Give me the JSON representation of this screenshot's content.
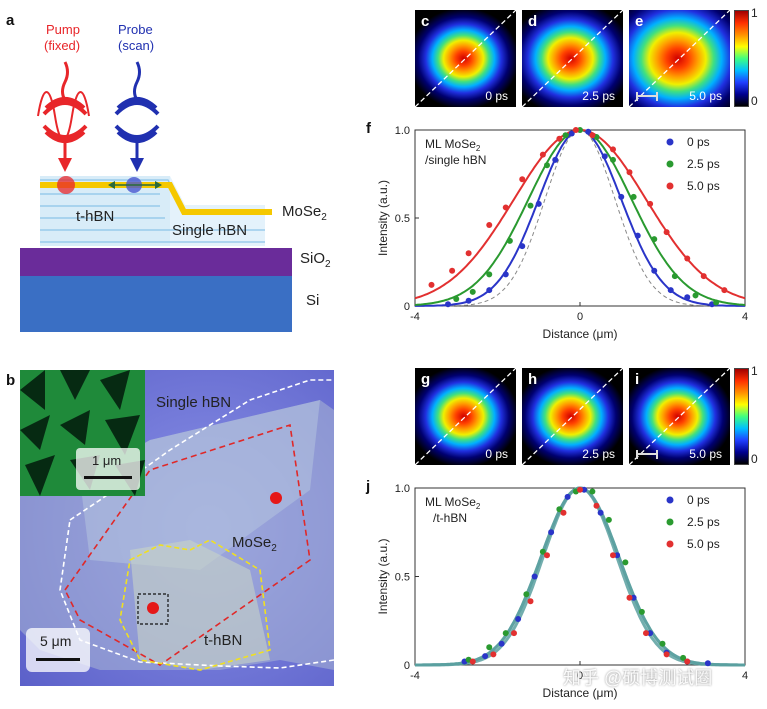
{
  "panels": {
    "a": "a",
    "b": "b",
    "c": "c",
    "d": "d",
    "e": "e",
    "f": "f",
    "g": "g",
    "h": "h",
    "i": "i",
    "j": "j"
  },
  "schematic": {
    "pump_label": "Pump",
    "pump_sub": "(fixed)",
    "probe_label": "Probe",
    "probe_sub": "(scan)",
    "layer_thbn": "t-hBN",
    "layer_single": "Single hBN",
    "mose2": "MoSe",
    "mose2_sub": "2",
    "sio2": "SiO",
    "sio2_sub": "2",
    "si": "Si",
    "colors": {
      "pump": "#e8262a",
      "probe": "#2030b0",
      "mose2": "#f5c800",
      "sio2": "#6a2c9a",
      "si": "#3a6fc4",
      "hbn": "#cfe6f5"
    }
  },
  "micrograph": {
    "single_hbn": "Single hBN",
    "mose2": "MoSe",
    "mose2_sub": "2",
    "thbn": "t-hBN",
    "inset_scale": "1 μm",
    "scale": "5 μm"
  },
  "maps_top": [
    {
      "letter": "c",
      "time": "0 ps"
    },
    {
      "letter": "d",
      "time": "2.5 ps"
    },
    {
      "letter": "e",
      "time": "5.0 ps"
    }
  ],
  "maps_bottom": [
    {
      "letter": "g",
      "time": "0 ps"
    },
    {
      "letter": "h",
      "time": "2.5 ps"
    },
    {
      "letter": "i",
      "time": "5.0 ps"
    }
  ],
  "colorbar": {
    "max": "1",
    "min": "0"
  },
  "watermark": "知乎 @硕博测试圈",
  "chart_data": [
    {
      "panel": "f",
      "type": "scatter",
      "title": "ML MoSe2 /single hBN",
      "title_l1": "ML MoSe",
      "title_l1_sub": "2",
      "title_l2": "/single hBN",
      "xlabel": "Distance (μm)",
      "ylabel": "Intensity (a.u.)",
      "xlim": [
        -4,
        4
      ],
      "ylim": [
        0,
        1.0
      ],
      "xticks": [
        "-4",
        "0",
        "4"
      ],
      "yticks": [
        "0",
        "0.5",
        "1.0"
      ],
      "series": [
        {
          "name": "0 ps",
          "color": "#2a35c8",
          "sigma": 1.0,
          "x": [
            -3.2,
            -2.7,
            -2.2,
            -1.8,
            -1.4,
            -1.0,
            -0.6,
            -0.2,
            0.2,
            0.6,
            1.0,
            1.4,
            1.8,
            2.2,
            2.6,
            3.2
          ],
          "y": [
            0.01,
            0.03,
            0.09,
            0.18,
            0.34,
            0.58,
            0.83,
            0.98,
            0.99,
            0.85,
            0.62,
            0.4,
            0.2,
            0.09,
            0.05,
            0.01
          ]
        },
        {
          "name": "2.5 ps",
          "color": "#2a9a30",
          "sigma": 1.25,
          "x": [
            -3.0,
            -2.6,
            -2.2,
            -1.7,
            -1.2,
            -0.8,
            -0.35,
            0.0,
            0.4,
            0.8,
            1.3,
            1.8,
            2.3,
            2.8,
            3.3
          ],
          "y": [
            0.04,
            0.08,
            0.18,
            0.37,
            0.57,
            0.8,
            0.97,
            1.0,
            0.96,
            0.83,
            0.62,
            0.38,
            0.17,
            0.06,
            0.02
          ]
        },
        {
          "name": "5.0 ps",
          "color": "#e23030",
          "sigma": 1.6,
          "x": [
            -3.6,
            -3.1,
            -2.7,
            -2.2,
            -1.8,
            -1.4,
            -0.9,
            -0.5,
            -0.1,
            0.3,
            0.8,
            1.2,
            1.7,
            2.1,
            2.6,
            3.0,
            3.5
          ],
          "y": [
            0.12,
            0.2,
            0.3,
            0.46,
            0.56,
            0.72,
            0.86,
            0.95,
            1.0,
            0.97,
            0.89,
            0.76,
            0.58,
            0.42,
            0.27,
            0.17,
            0.09
          ]
        }
      ],
      "reference_sigma": 0.85
    },
    {
      "panel": "j",
      "type": "scatter",
      "title": "ML MoSe2 /t-hBN",
      "title_l1": "ML MoSe",
      "title_l1_sub": "2",
      "title_l2": "/t-hBN",
      "xlabel": "Distance (μm)",
      "ylabel": "Intensity (a.u.)",
      "xlim": [
        -4,
        4
      ],
      "ylim": [
        0,
        1.0
      ],
      "xticks": [
        "-4",
        "0",
        "4"
      ],
      "yticks": [
        "0",
        "0.5",
        "1.0"
      ],
      "series": [
        {
          "name": "0 ps",
          "color": "#2a35c8",
          "sigma": 0.95,
          "x": [
            -2.8,
            -2.3,
            -1.9,
            -1.5,
            -1.1,
            -0.7,
            -0.3,
            0.1,
            0.5,
            0.9,
            1.3,
            1.7,
            2.1,
            2.6,
            3.1
          ],
          "y": [
            0.02,
            0.05,
            0.12,
            0.26,
            0.5,
            0.75,
            0.95,
            0.99,
            0.86,
            0.62,
            0.38,
            0.18,
            0.07,
            0.02,
            0.01
          ]
        },
        {
          "name": "2.5 ps",
          "color": "#2a9a30",
          "sigma": 0.95,
          "x": [
            -2.7,
            -2.2,
            -1.8,
            -1.3,
            -0.9,
            -0.5,
            -0.1,
            0.3,
            0.7,
            1.1,
            1.5,
            2.0,
            2.5
          ],
          "y": [
            0.03,
            0.1,
            0.18,
            0.4,
            0.64,
            0.88,
            0.98,
            0.98,
            0.82,
            0.58,
            0.3,
            0.12,
            0.04
          ]
        },
        {
          "name": "5.0 ps",
          "color": "#e23030",
          "sigma": 0.9,
          "x": [
            -2.6,
            -2.1,
            -1.6,
            -1.2,
            -0.8,
            -0.4,
            0.0,
            0.4,
            0.8,
            1.2,
            1.6,
            2.1,
            2.6
          ],
          "y": [
            0.02,
            0.06,
            0.18,
            0.36,
            0.62,
            0.86,
            0.99,
            0.9,
            0.62,
            0.38,
            0.18,
            0.06,
            0.02
          ]
        }
      ],
      "fit_color": "#5aa0a0"
    }
  ]
}
